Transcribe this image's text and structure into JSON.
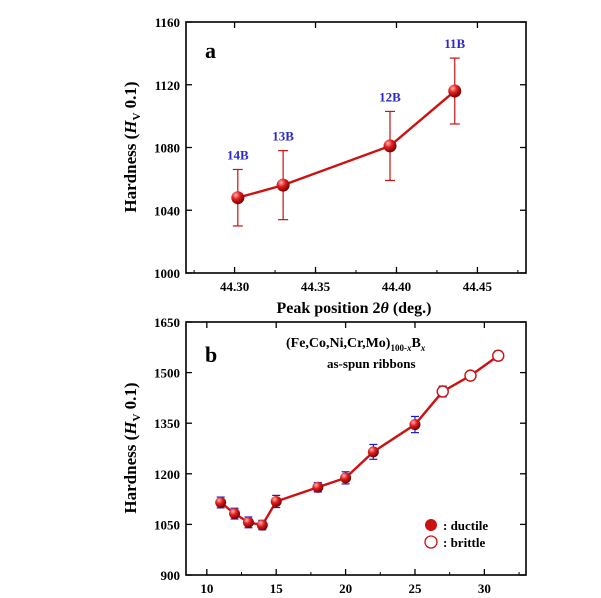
{
  "colors": {
    "line": "#cc1111",
    "marker": "#cc1111",
    "errorbar_a": "#cc1111",
    "errorbar_b": "#1a1acc",
    "label_a": "#2a2acc",
    "axis": "#000000"
  },
  "chart_data": [
    {
      "type": "line",
      "panel_label": "a",
      "xlabel": "Peak position 2θ (deg.)",
      "ylabel": "Hardness (HV 0.1)",
      "xlim": [
        44.27,
        44.48
      ],
      "ylim": [
        1000,
        1160
      ],
      "xticks": [
        44.3,
        44.35,
        44.4,
        44.45
      ],
      "xtick_labels": [
        "44.30",
        "44.35",
        "44.40",
        "44.45"
      ],
      "yticks": [
        1000,
        1040,
        1080,
        1120,
        1160
      ],
      "ytick_labels": [
        "1000",
        "1040",
        "1080",
        "1120",
        "1160"
      ],
      "series": [
        {
          "x": [
            44.302,
            44.33,
            44.396,
            44.436
          ],
          "y": [
            1048,
            1056,
            1081,
            1116
          ],
          "err": [
            18,
            22,
            22,
            21
          ],
          "point_labels": [
            "14B",
            "13B",
            "12B",
            "11B"
          ]
        }
      ],
      "grid": false
    },
    {
      "type": "line",
      "panel_label": "b",
      "annotation_line1": "(Fe,Co,Ni,Cr,Mo)100-xBx",
      "annotation_line2": "as-spun ribbons",
      "xlabel": "",
      "ylabel": "Hardness (HV 0.1)",
      "xlim": [
        8.5,
        33
      ],
      "ylim": [
        900,
        1650
      ],
      "xticks": [
        10,
        15,
        20,
        25,
        30
      ],
      "xtick_labels": [
        "10",
        "15",
        "20",
        "25",
        "30"
      ],
      "yticks": [
        900,
        1050,
        1200,
        1350,
        1500,
        1650
      ],
      "ytick_labels": [
        "900",
        "1050",
        "1200",
        "1350",
        "1500",
        "1650"
      ],
      "series": [
        {
          "name": ": ductile",
          "marker": "filled",
          "x": [
            11,
            12,
            13,
            14,
            15,
            18,
            20,
            22,
            25
          ],
          "y": [
            1115,
            1082,
            1056,
            1048,
            1118,
            1160,
            1188,
            1265,
            1346
          ],
          "err": [
            16,
            16,
            16,
            14,
            18,
            14,
            18,
            22,
            24
          ]
        },
        {
          "name": ": brittle",
          "marker": "open",
          "x": [
            27,
            29,
            31
          ],
          "y": [
            1444,
            1491,
            1550
          ],
          "err": [
            16,
            10,
            14
          ]
        }
      ],
      "legend_position": "bottom-right",
      "grid": false
    }
  ]
}
